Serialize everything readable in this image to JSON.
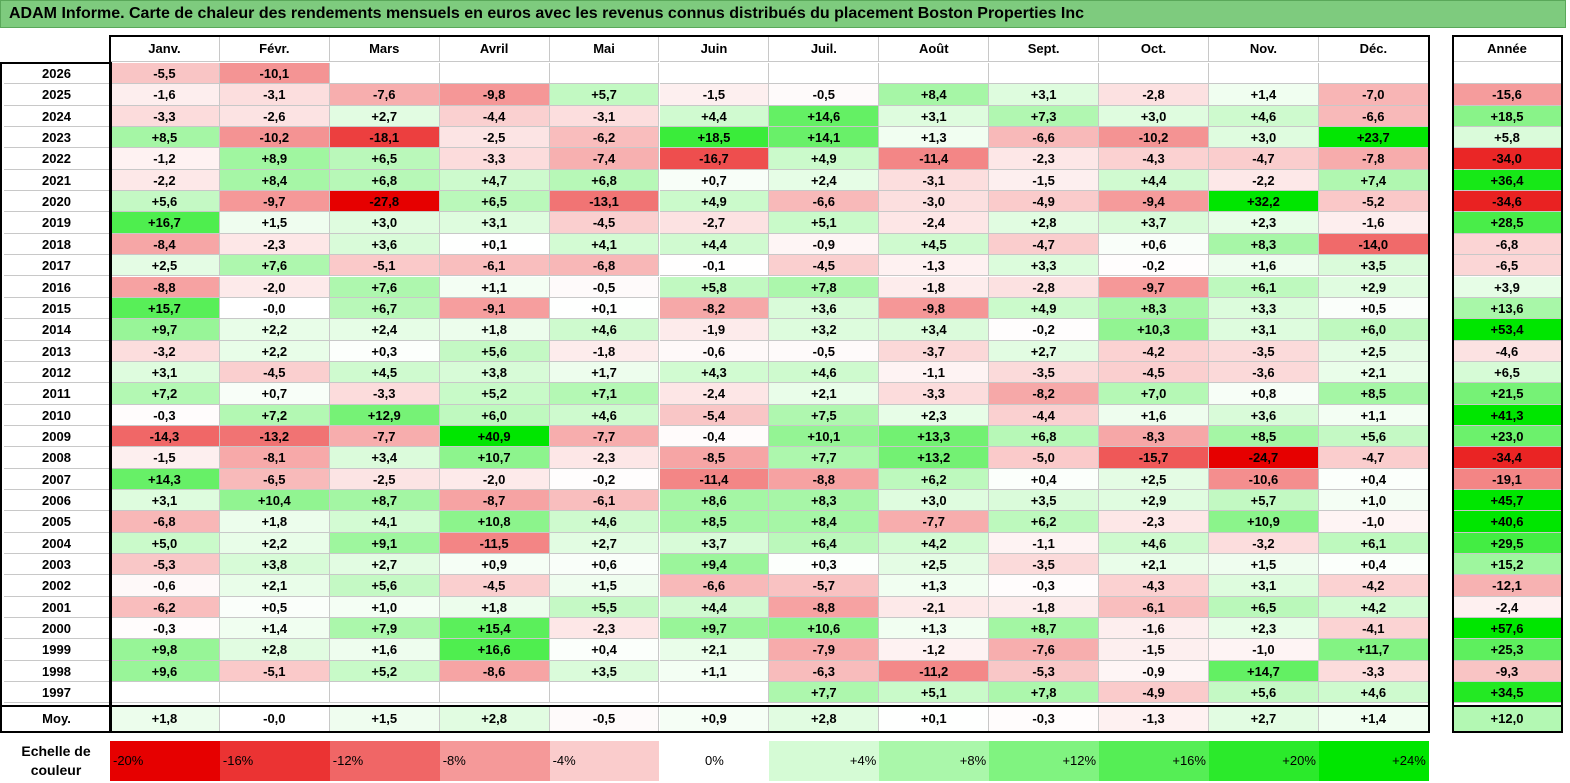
{
  "title": "ADAM Informe. Carte de chaleur des rendements mensuels en euros avec les revenus connus distribués du placement Boston Properties Inc",
  "chart_data": {
    "type": "heatmap",
    "title": "ADAM Informe. Carte de chaleur des rendements mensuels en euros avec les revenus connus distribués du placement Boston Properties Inc",
    "columns": [
      "Janv.",
      "Févr.",
      "Mars",
      "Avril",
      "Mai",
      "Juin",
      "Juil.",
      "Août",
      "Sept.",
      "Oct.",
      "Nov.",
      "Déc."
    ],
    "annual_header": "Année",
    "rows": [
      {
        "year": "2026",
        "values": [
          "-5,5",
          "-10,1",
          "",
          "",
          "",
          "",
          "",
          "",
          "",
          "",
          "",
          ""
        ],
        "annual": ""
      },
      {
        "year": "2025",
        "values": [
          "-1,6",
          "-3,1",
          "-7,6",
          "-9,8",
          "+5,7",
          "-1,5",
          "-0,5",
          "+8,4",
          "+3,1",
          "-2,8",
          "+1,4",
          "-7,0"
        ],
        "annual": "-15,6"
      },
      {
        "year": "2024",
        "values": [
          "-3,3",
          "-2,6",
          "+2,7",
          "-4,4",
          "-3,1",
          "+4,4",
          "+14,6",
          "+3,1",
          "+7,3",
          "+3,0",
          "+4,6",
          "-6,6"
        ],
        "annual": "+18,5"
      },
      {
        "year": "2023",
        "values": [
          "+8,5",
          "-10,2",
          "-18,1",
          "-2,5",
          "-6,2",
          "+18,5",
          "+14,1",
          "+1,3",
          "-6,6",
          "-10,2",
          "+3,0",
          "+23,7"
        ],
        "annual": "+5,8"
      },
      {
        "year": "2022",
        "values": [
          "-1,2",
          "+8,9",
          "+6,5",
          "-3,3",
          "-7,4",
          "-16,7",
          "+4,9",
          "-11,4",
          "-2,3",
          "-4,3",
          "-4,7",
          "-7,8"
        ],
        "annual": "-34,0"
      },
      {
        "year": "2021",
        "values": [
          "-2,2",
          "+8,4",
          "+6,8",
          "+4,7",
          "+6,8",
          "+0,7",
          "+2,4",
          "-3,1",
          "-1,5",
          "+4,4",
          "-2,2",
          "+7,4"
        ],
        "annual": "+36,4"
      },
      {
        "year": "2020",
        "values": [
          "+5,6",
          "-9,7",
          "-27,8",
          "+6,5",
          "-13,1",
          "+4,9",
          "-6,6",
          "-3,0",
          "-4,9",
          "-9,4",
          "+32,2",
          "-5,2"
        ],
        "annual": "-34,6"
      },
      {
        "year": "2019",
        "values": [
          "+16,7",
          "+1,5",
          "+3,0",
          "+3,1",
          "-4,5",
          "-2,7",
          "+5,1",
          "-2,4",
          "+2,8",
          "+3,7",
          "+2,3",
          "-1,6"
        ],
        "annual": "+28,5"
      },
      {
        "year": "2018",
        "values": [
          "-8,4",
          "-2,3",
          "+3,6",
          "+0,1",
          "+4,1",
          "+4,4",
          "-0,9",
          "+4,5",
          "-4,7",
          "+0,6",
          "+8,3",
          "-14,0"
        ],
        "annual": "-6,8"
      },
      {
        "year": "2017",
        "values": [
          "+2,5",
          "+7,6",
          "-5,1",
          "-6,1",
          "-6,8",
          "-0,1",
          "-4,5",
          "-1,3",
          "+3,3",
          "-0,2",
          "+1,6",
          "+3,5"
        ],
        "annual": "-6,5"
      },
      {
        "year": "2016",
        "values": [
          "-8,8",
          "-2,0",
          "+7,6",
          "+1,1",
          "-0,5",
          "+5,8",
          "+7,8",
          "-1,8",
          "-2,8",
          "-9,7",
          "+6,1",
          "+2,9"
        ],
        "annual": "+3,9"
      },
      {
        "year": "2015",
        "values": [
          "+15,7",
          "-0,0",
          "+6,7",
          "-9,1",
          "+0,1",
          "-8,2",
          "+3,6",
          "-9,8",
          "+4,9",
          "+8,3",
          "+3,3",
          "+0,5"
        ],
        "annual": "+13,6"
      },
      {
        "year": "2014",
        "values": [
          "+9,7",
          "+2,2",
          "+2,4",
          "+1,8",
          "+4,6",
          "-1,9",
          "+3,2",
          "+3,4",
          "-0,2",
          "+10,3",
          "+3,1",
          "+6,0"
        ],
        "annual": "+53,4"
      },
      {
        "year": "2013",
        "values": [
          "-3,2",
          "+2,2",
          "+0,3",
          "+5,6",
          "-1,8",
          "-0,6",
          "-0,5",
          "-3,7",
          "+2,7",
          "-4,2",
          "-3,5",
          "+2,5"
        ],
        "annual": "-4,6"
      },
      {
        "year": "2012",
        "values": [
          "+3,1",
          "-4,5",
          "+4,5",
          "+3,8",
          "+1,7",
          "+4,3",
          "+4,6",
          "-1,1",
          "-3,5",
          "-4,5",
          "-3,6",
          "+2,1"
        ],
        "annual": "+6,5"
      },
      {
        "year": "2011",
        "values": [
          "+7,2",
          "+0,7",
          "-3,3",
          "+5,2",
          "+7,1",
          "-2,4",
          "+2,1",
          "-3,3",
          "-8,2",
          "+7,0",
          "+0,8",
          "+8,5"
        ],
        "annual": "+21,5"
      },
      {
        "year": "2010",
        "values": [
          "-0,3",
          "+7,2",
          "+12,9",
          "+6,0",
          "+4,6",
          "-5,4",
          "+7,5",
          "+2,3",
          "-4,4",
          "+1,6",
          "+3,6",
          "+1,1"
        ],
        "annual": "+41,3"
      },
      {
        "year": "2009",
        "values": [
          "-14,3",
          "-13,2",
          "-7,7",
          "+40,9",
          "-7,7",
          "-0,4",
          "+10,1",
          "+13,3",
          "+6,8",
          "-8,3",
          "+8,5",
          "+5,6"
        ],
        "annual": "+23,0"
      },
      {
        "year": "2008",
        "values": [
          "-1,5",
          "-8,1",
          "+3,4",
          "+10,7",
          "-2,3",
          "-8,5",
          "+7,7",
          "+13,2",
          "-5,0",
          "-15,7",
          "-24,7",
          "-4,7"
        ],
        "annual": "-34,4"
      },
      {
        "year": "2007",
        "values": [
          "+14,3",
          "-6,5",
          "-2,5",
          "-2,0",
          "-0,2",
          "-11,4",
          "-8,8",
          "+6,2",
          "+0,4",
          "+2,5",
          "-10,6",
          "+0,4"
        ],
        "annual": "-19,1"
      },
      {
        "year": "2006",
        "values": [
          "+3,1",
          "+10,4",
          "+8,7",
          "-8,7",
          "-6,1",
          "+8,6",
          "+8,3",
          "+3,0",
          "+3,5",
          "+2,9",
          "+5,7",
          "+1,0"
        ],
        "annual": "+45,7"
      },
      {
        "year": "2005",
        "values": [
          "-6,8",
          "+1,8",
          "+4,1",
          "+10,8",
          "+4,6",
          "+8,5",
          "+8,4",
          "-7,7",
          "+6,2",
          "-2,3",
          "+10,9",
          "-1,0"
        ],
        "annual": "+40,6"
      },
      {
        "year": "2004",
        "values": [
          "+5,0",
          "+2,2",
          "+9,1",
          "-11,5",
          "+2,7",
          "+3,7",
          "+6,4",
          "+4,2",
          "-1,1",
          "+4,6",
          "-3,2",
          "+6,1"
        ],
        "annual": "+29,5"
      },
      {
        "year": "2003",
        "values": [
          "-5,3",
          "+3,8",
          "+2,7",
          "+0,9",
          "+0,6",
          "+9,4",
          "+0,3",
          "+2,5",
          "-3,5",
          "+2,1",
          "+1,5",
          "+0,4"
        ],
        "annual": "+15,2"
      },
      {
        "year": "2002",
        "values": [
          "-0,6",
          "+2,1",
          "+5,6",
          "-4,5",
          "+1,5",
          "-6,6",
          "-5,7",
          "+1,3",
          "-0,3",
          "-4,3",
          "+3,1",
          "-4,2"
        ],
        "annual": "-12,1"
      },
      {
        "year": "2001",
        "values": [
          "-6,2",
          "+0,5",
          "+1,0",
          "+1,8",
          "+5,5",
          "+4,4",
          "-8,8",
          "-2,1",
          "-1,8",
          "-6,1",
          "+6,5",
          "+4,2"
        ],
        "annual": "-2,4"
      },
      {
        "year": "2000",
        "values": [
          "-0,3",
          "+1,4",
          "+7,9",
          "+15,4",
          "-2,3",
          "+9,7",
          "+10,6",
          "+1,3",
          "+8,7",
          "-1,6",
          "+2,3",
          "-4,1"
        ],
        "annual": "+57,6"
      },
      {
        "year": "1999",
        "values": [
          "+9,8",
          "+2,8",
          "+1,6",
          "+16,6",
          "+0,4",
          "+2,1",
          "-7,9",
          "-1,2",
          "-7,6",
          "-1,5",
          "-1,0",
          "+11,7"
        ],
        "annual": "+25,3"
      },
      {
        "year": "1998",
        "values": [
          "+9,6",
          "-5,1",
          "+5,2",
          "-8,6",
          "+3,5",
          "+1,1",
          "-6,3",
          "-11,2",
          "-5,3",
          "-0,9",
          "+14,7",
          "-3,3"
        ],
        "annual": "-9,3"
      },
      {
        "year": "1997",
        "values": [
          "",
          "",
          "",
          "",
          "",
          "",
          "+7,7",
          "+5,1",
          "+7,8",
          "-4,9",
          "+5,6",
          "+4,6"
        ],
        "annual": "+34,5"
      }
    ],
    "average": {
      "label": "Moy.",
      "values": [
        "+1,8",
        "-0,0",
        "+1,5",
        "+2,8",
        "-0,5",
        "+0,9",
        "+2,8",
        "+0,1",
        "-0,3",
        "-1,3",
        "+2,7",
        "+1,4"
      ],
      "annual": "+12,0"
    },
    "color_scale": {
      "label": "Echelle de couleur",
      "steps": [
        "-20%",
        "-16%",
        "-12%",
        "-8%",
        "-4%",
        "0%",
        "+4%",
        "+8%",
        "+12%",
        "+16%",
        "+20%",
        "+24%"
      ],
      "negative_color": "#e60000",
      "neutral_color": "#ffffff",
      "positive_color": "#00e600"
    }
  }
}
